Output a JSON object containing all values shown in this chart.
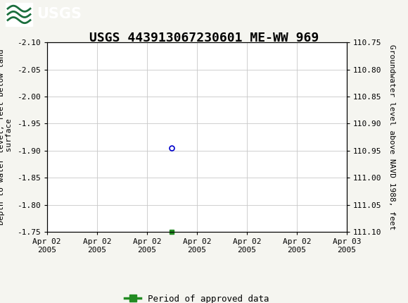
{
  "title": "USGS 443913067230601 ME-WW 969",
  "ylabel_left": "Depth to water level, feet below land\n surface",
  "ylabel_right": "Groundwater level above NAVD 1988, feet",
  "ylim_left": [
    -2.1,
    -1.75
  ],
  "ylim_right": [
    110.75,
    111.1
  ],
  "yticks_left": [
    -2.1,
    -2.05,
    -2.0,
    -1.95,
    -1.9,
    -1.85,
    -1.8,
    -1.75
  ],
  "yticks_right": [
    110.75,
    110.8,
    110.85,
    110.9,
    110.95,
    111.0,
    111.05,
    111.1
  ],
  "data_x": 10,
  "data_y": -1.905,
  "data_color": "#0000cc",
  "header_color": "#1a6e3c",
  "background_color": "#f5f5f0",
  "plot_bg_color": "#ffffff",
  "grid_color": "#c8c8c8",
  "legend_label": "Period of approved data",
  "legend_color": "#228B22",
  "title_fontsize": 13,
  "axis_label_fontsize": 8,
  "tick_fontsize": 8,
  "xtick_positions": [
    0,
    4,
    8,
    12,
    16,
    20,
    24
  ],
  "xtick_labels": [
    "Apr 02\n2005",
    "Apr 02\n2005",
    "Apr 02\n2005",
    "Apr 02\n2005",
    "Apr 02\n2005",
    "Apr 02\n2005",
    "Apr 03\n2005"
  ],
  "xlim": [
    0,
    24
  ]
}
